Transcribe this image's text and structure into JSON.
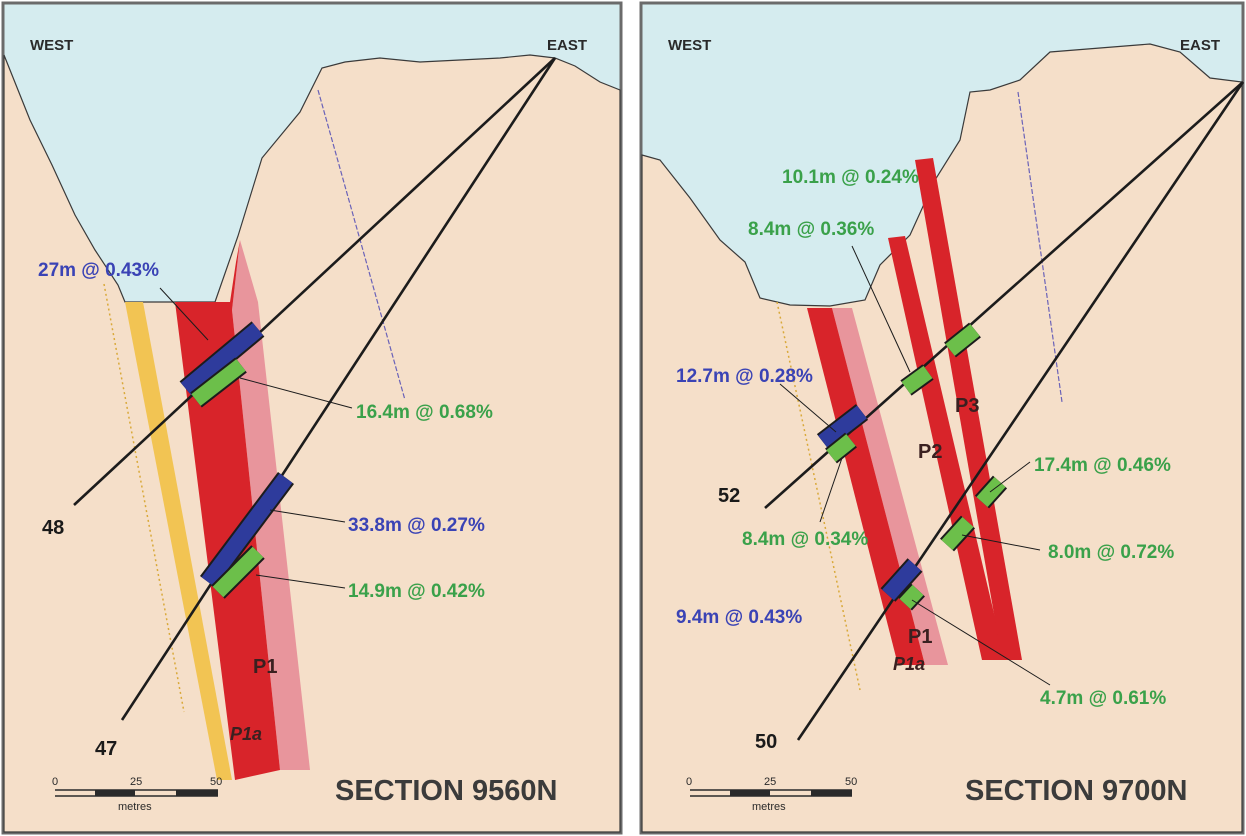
{
  "directions": {
    "west": "WEST",
    "east": "EAST"
  },
  "colors": {
    "sky": "#d5ecef",
    "ground": "#f5dfc9",
    "ore_high": "#d8242a",
    "ore_low": "#e8959c",
    "dyke": "#f2c453",
    "hole": "#1c1c1c",
    "green_intercept": "#6cbf4a",
    "blue_intercept": "#2e3b9c",
    "green_text": "#3aa14a",
    "blue_text": "#3a43b5"
  },
  "panel_left": {
    "section_title": "SECTION 9560N",
    "hole_labels": [
      "48",
      "47"
    ],
    "zone_labels": {
      "p1": "P1",
      "p1a": "P1a"
    },
    "intercepts": [
      {
        "text": "27m @ 0.43%",
        "color": "blue"
      },
      {
        "text": "16.4m @ 0.68%",
        "color": "green"
      },
      {
        "text": "33.8m @ 0.27%",
        "color": "blue"
      },
      {
        "text": "14.9m @ 0.42%",
        "color": "green"
      }
    ],
    "scale": {
      "ticks": [
        "0",
        "25",
        "50"
      ],
      "unit": "metres"
    }
  },
  "panel_right": {
    "section_title": "SECTION 9700N",
    "hole_labels": [
      "52",
      "50"
    ],
    "zone_labels": {
      "p1": "P1",
      "p1a": "P1a",
      "p2": "P2",
      "p3": "P3"
    },
    "intercepts": [
      {
        "text": "10.1m @ 0.24%",
        "color": "green"
      },
      {
        "text": "8.4m @ 0.36%",
        "color": "green"
      },
      {
        "text": "12.7m @ 0.28%",
        "color": "blue"
      },
      {
        "text": "17.4m @ 0.46%",
        "color": "green"
      },
      {
        "text": "8.4m @ 0.34%",
        "color": "green"
      },
      {
        "text": "8.0m @ 0.72%",
        "color": "green"
      },
      {
        "text": "9.4m @ 0.43%",
        "color": "blue"
      },
      {
        "text": "4.7m @ 0.61%",
        "color": "green"
      }
    ],
    "scale": {
      "ticks": [
        "0",
        "25",
        "50"
      ],
      "unit": "metres"
    }
  }
}
